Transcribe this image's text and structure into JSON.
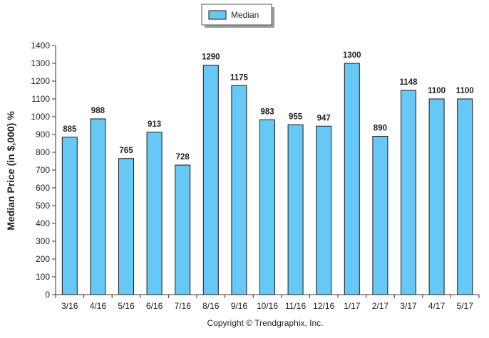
{
  "chart_data": {
    "type": "bar",
    "categories": [
      "3/16",
      "4/16",
      "5/16",
      "6/16",
      "7/16",
      "8/16",
      "9/16",
      "10/16",
      "11/16",
      "12/16",
      "1/17",
      "2/17",
      "3/17",
      "4/17",
      "5/17"
    ],
    "series": [
      {
        "name": "Median",
        "values": [
          885,
          988,
          765,
          913,
          728,
          1290,
          1175,
          983,
          955,
          947,
          1300,
          890,
          1148,
          1100,
          1100
        ]
      }
    ],
    "data_labels": [
      "885",
      "988",
      "765",
      "913",
      "728",
      "1290",
      "1175",
      "983",
      "955",
      "947",
      "1300",
      "890",
      "1148",
      "1100",
      "1100"
    ],
    "ylabel": "Median Price (in $,000) %",
    "ylim": [
      0,
      1400
    ],
    "yticks": [
      0,
      100,
      200,
      300,
      400,
      500,
      600,
      700,
      800,
      900,
      1000,
      1100,
      1200,
      1300,
      1400
    ],
    "grid": false,
    "legend_position": "top-center",
    "bar_color": "#66c8f5",
    "bar_edge_color": "#1a1a1a",
    "copyright": "Copyright © Trendgraphix, Inc."
  }
}
